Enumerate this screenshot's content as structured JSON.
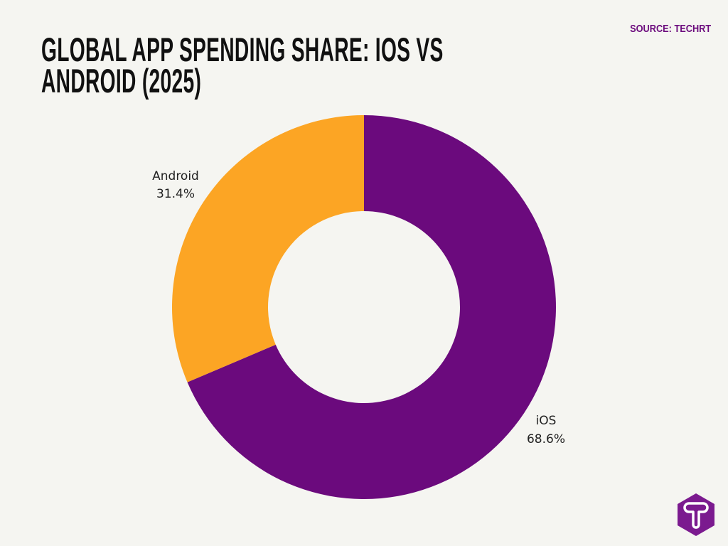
{
  "header": {
    "title": "GLOBAL APP SPENDING SHARE: IOS VS ANDROID (2025)",
    "source": "SOURCE: TECHRT"
  },
  "chart_data": {
    "type": "pie",
    "variant": "donut",
    "title": "GLOBAL APP SPENDING SHARE: IOS VS ANDROID (2025)",
    "categories": [
      "iOS",
      "Android"
    ],
    "values": [
      68.6,
      31.4
    ],
    "labels": [
      "68.6%",
      "31.4%"
    ],
    "colors": [
      "#6b0a7d",
      "#fca524"
    ],
    "start": "top, clockwise",
    "legend": "none"
  },
  "logo": {
    "text": "T",
    "color": "#7b1a8f"
  }
}
